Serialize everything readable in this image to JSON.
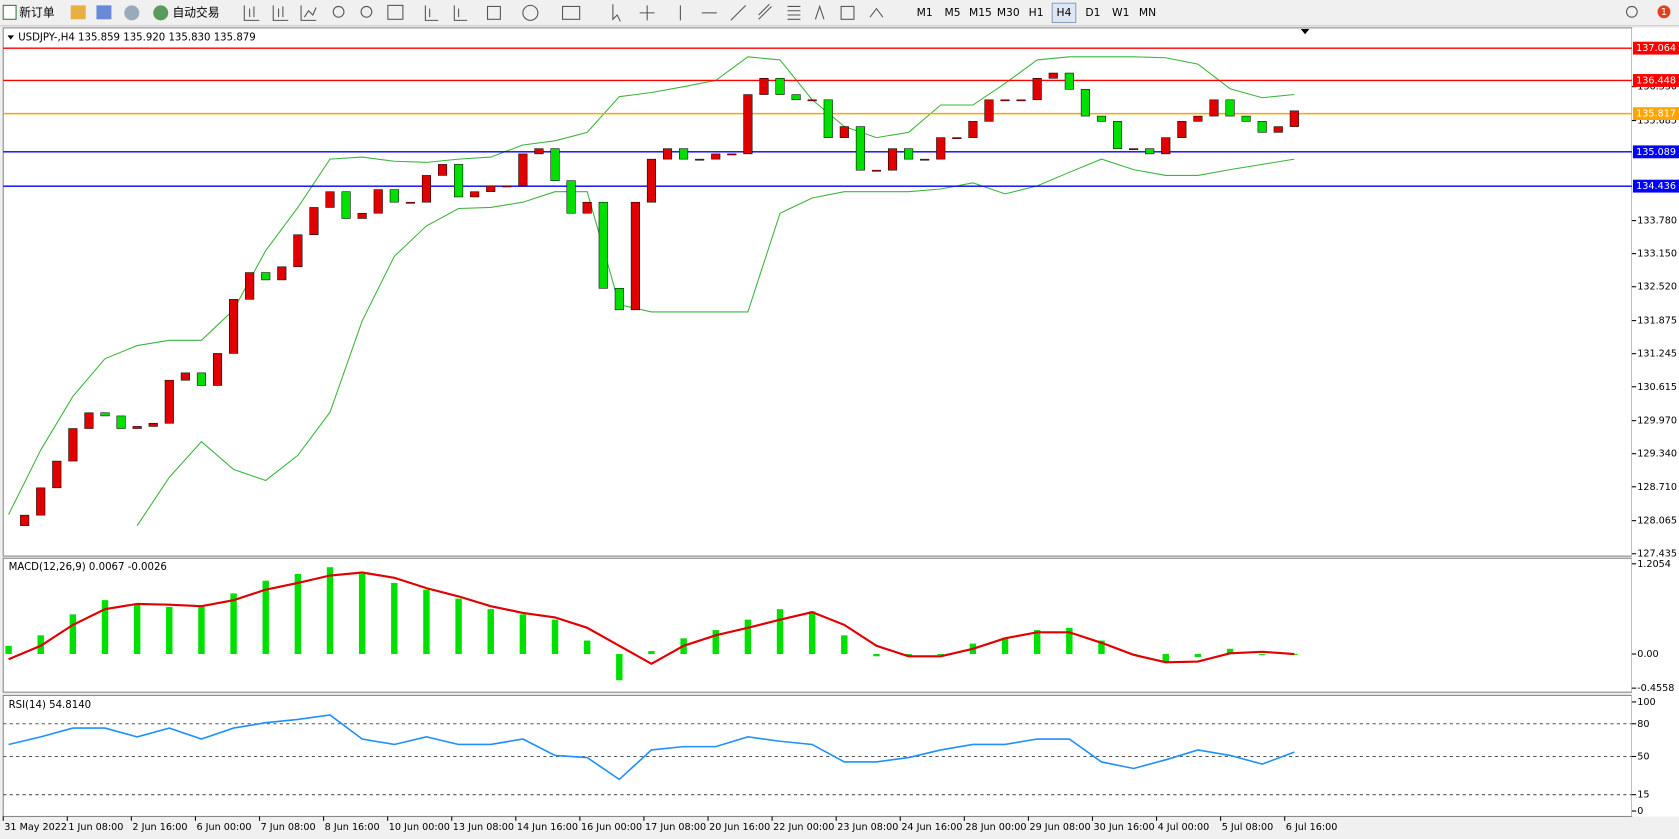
{
  "toolbar": {
    "new_order": "新订单",
    "auto_trading": "自动交易",
    "timeframes": [
      "M1",
      "M5",
      "M15",
      "M30",
      "H1",
      "H4",
      "D1",
      "W1",
      "MN"
    ],
    "active_timeframe": 5,
    "notifications": "1"
  },
  "chart_data": {
    "type": "candlestick",
    "header": "USDJPY-,H4  135.859 135.920 135.830 135.879",
    "up_color": "#e00000",
    "down_color": "#00e000",
    "closes": [
      127.97,
      128.17,
      128.69,
      129.2,
      129.82,
      130.12,
      130.06,
      129.82,
      129.86,
      129.92,
      130.74,
      130.88,
      130.64,
      131.25,
      132.28,
      132.79,
      132.65,
      132.9,
      133.51,
      134.03,
      134.33,
      133.82,
      133.92,
      134.37,
      134.13,
      134.13,
      134.64,
      134.85,
      134.23,
      134.33,
      134.44,
      134.44,
      135.05,
      135.15,
      134.54,
      133.92,
      134.13,
      132.49,
      132.08,
      134.13,
      134.95,
      135.15,
      134.95,
      134.95,
      135.05,
      135.05,
      136.18,
      136.49,
      136.18,
      136.08,
      136.08,
      135.36,
      135.57,
      134.74,
      134.74,
      135.15,
      134.95,
      134.95,
      135.36,
      135.36,
      135.67,
      136.08,
      136.08,
      136.08,
      136.49,
      136.59,
      136.28,
      135.77,
      135.67,
      135.15,
      135.15,
      135.05,
      135.36,
      135.67,
      135.77,
      136.08,
      135.77,
      135.67,
      135.46,
      135.57,
      135.87
    ],
    "bands": {
      "color": "#3cb43c",
      "upper": [
        128.18,
        129.41,
        130.43,
        131.15,
        131.4,
        131.5,
        131.5,
        132.08,
        133.21,
        134.03,
        134.95,
        134.99,
        134.91,
        134.89,
        134.95,
        134.99,
        135.22,
        135.3,
        135.46,
        136.14,
        136.22,
        136.33,
        136.45,
        136.9,
        136.84,
        136.08,
        135.57,
        135.36,
        135.46,
        135.98,
        135.98,
        136.39,
        136.84,
        136.9,
        136.9,
        136.9,
        136.88,
        136.76,
        136.29,
        136.12,
        136.18
      ],
      "lower": [
        null,
        null,
        null,
        null,
        127.97,
        128.89,
        129.57,
        129.04,
        128.83,
        129.31,
        130.13,
        131.87,
        133.1,
        133.68,
        134.01,
        134.03,
        134.13,
        134.33,
        134.33,
        132.18,
        132.04,
        132.04,
        132.04,
        132.04,
        133.92,
        134.21,
        134.33,
        134.33,
        134.33,
        134.38,
        134.5,
        134.29,
        134.44,
        134.7,
        134.95,
        134.75,
        134.64,
        134.64,
        134.75,
        134.85,
        134.95
      ]
    },
    "ylim": [
      127.39,
      137.45
    ],
    "yticks": [
      {
        "value": 136.33,
        "label": "136.330"
      },
      135.685,
      {
        "value": 133.78,
        "label": "133.780"
      },
      {
        "value": 133.15,
        "label": "133.150"
      },
      {
        "value": 132.52,
        "label": "132.520"
      },
      131.875,
      131.245,
      130.615,
      {
        "value": 129.97,
        "label": "129.970"
      },
      {
        "value": 129.34,
        "label": "129.340"
      },
      {
        "value": 128.71,
        "label": "128.710"
      },
      128.065,
      127.435
    ],
    "hlines": [
      {
        "value": 137.064,
        "color": "#ff0000"
      },
      {
        "value": 136.448,
        "color": "#ff0000"
      },
      {
        "value": 135.817,
        "color": "#ffa500"
      },
      {
        "value": 135.089,
        "color": "#0000ff"
      },
      {
        "value": 134.436,
        "color": "#0000ff"
      }
    ],
    "time_labels": [
      "31 May 2022",
      "1 Jun 08:00",
      "2 Jun 16:00",
      "6 Jun 00:00",
      "7 Jun 08:00",
      "8 Jun 16:00",
      "10 Jun 00:00",
      "13 Jun 08:00",
      "14 Jun 16:00",
      "16 Jun 00:00",
      "17 Jun 08:00",
      "20 Jun 16:00",
      "22 Jun 00:00",
      "23 Jun 08:00",
      "24 Jun 16:00",
      "28 Jun 00:00",
      "29 Jun 08:00",
      "30 Jun 16:00",
      "4 Jul 00:00",
      "5 Jul 08:00",
      "6 Jul 16:00"
    ],
    "macd": {
      "header": "MACD(12,26,9) 0.0067 -0.0026",
      "hist_color": "#00e000",
      "signal_color": "#e00000",
      "histogram": [
        0.11,
        0.25,
        0.53,
        0.72,
        0.67,
        0.63,
        0.63,
        0.81,
        0.98,
        1.07,
        1.16,
        1.07,
        0.95,
        0.86,
        0.74,
        0.6,
        0.53,
        0.46,
        0.18,
        -0.35,
        0.04,
        0.21,
        0.32,
        0.46,
        0.6,
        0.57,
        0.25,
        -0.03,
        -0.03,
        0.0,
        0.14,
        0.22,
        0.32,
        0.35,
        0.18,
        -0.01,
        -0.1,
        -0.04,
        0.07,
        -0.01,
        -0.01
      ],
      "signal": [
        -0.07,
        0.11,
        0.39,
        0.6,
        0.67,
        0.66,
        0.64,
        0.72,
        0.86,
        0.95,
        1.05,
        1.09,
        1.02,
        0.88,
        0.77,
        0.64,
        0.55,
        0.49,
        0.35,
        0.11,
        -0.13,
        0.11,
        0.25,
        0.35,
        0.46,
        0.56,
        0.39,
        0.11,
        -0.03,
        -0.03,
        0.07,
        0.21,
        0.29,
        0.29,
        0.15,
        -0.01,
        -0.11,
        -0.1,
        0.01,
        0.03,
        0.0
      ],
      "ylim": [
        -0.51,
        1.28
      ],
      "yticks": [
        1.2054,
        {
          "value": 0,
          "label": "0.00"
        },
        -0.4558
      ]
    },
    "rsi": {
      "header": "RSI(14) 54.8140",
      "color": "#1e90ff",
      "values": [
        61,
        68,
        76,
        76,
        68,
        76,
        66,
        76,
        81,
        84,
        88,
        66,
        61,
        68,
        61,
        61,
        66,
        51,
        49,
        29,
        56,
        59,
        59,
        68,
        64,
        61,
        45,
        45,
        49,
        56,
        61,
        61,
        66,
        66,
        45,
        39,
        47,
        56,
        51,
        43,
        54
      ],
      "ylim": [
        -5,
        106
      ],
      "yticks": [
        100,
        80,
        50,
        15,
        0
      ],
      "levels": [
        80,
        50,
        15
      ]
    }
  }
}
